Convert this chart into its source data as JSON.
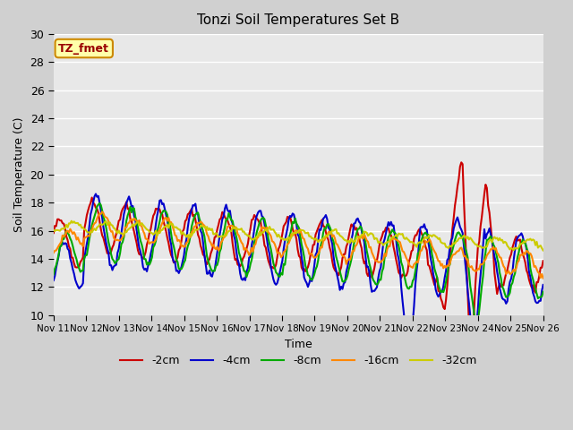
{
  "title": "Tonzi Soil Temperatures Set B",
  "xlabel": "Time",
  "ylabel": "Soil Temperature (C)",
  "ylim": [
    10,
    30
  ],
  "annotation_text": "TZ_fmet",
  "annotation_bg": "#ffffaa",
  "annotation_border": "#cc8800",
  "annotation_text_color": "#990000",
  "series": [
    {
      "label": "-2cm",
      "color": "#cc0000",
      "lw": 1.5
    },
    {
      "label": "-4cm",
      "color": "#0000cc",
      "lw": 1.5
    },
    {
      "label": "-8cm",
      "color": "#00aa00",
      "lw": 1.5
    },
    {
      "label": "-16cm",
      "color": "#ff8800",
      "lw": 1.5
    },
    {
      "label": "-32cm",
      "color": "#cccc00",
      "lw": 1.5
    }
  ],
  "xtick_labels": [
    "Nov 11",
    "Nov 12",
    "Nov 13",
    "Nov 14",
    "Nov 15",
    "Nov 16",
    "Nov 17",
    "Nov 18",
    "Nov 19",
    "Nov 20",
    "Nov 21",
    "Nov 22",
    "Nov 23",
    "Nov 24",
    "Nov 25",
    "Nov 26"
  ],
  "xtick_positions": [
    0,
    1,
    2,
    3,
    4,
    5,
    6,
    7,
    8,
    9,
    10,
    11,
    12,
    13,
    14,
    15
  ],
  "num_days": 16,
  "points_per_day": 24
}
